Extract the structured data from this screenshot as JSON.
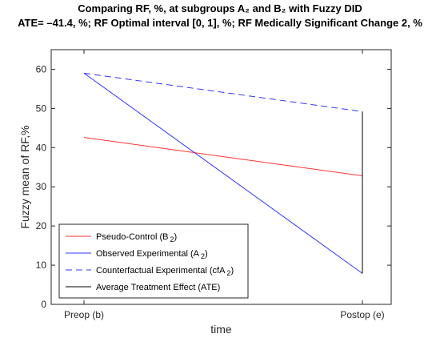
{
  "chart_data": {
    "type": "line",
    "title_line1": "Comparing RF, %, at subgroups A₂ and B₂ with Fuzzy DID",
    "title_line2": "ATE= –41.4, %; RF Optimal interval [0, 1], %; RF Medically Significant Change 2, %",
    "xlabel": "time",
    "ylabel": "Fuzzy mean of RF,%",
    "categories": [
      "Preop (b)",
      "Postop (e)"
    ],
    "ylim": [
      0,
      65
    ],
    "yticks": [
      0,
      10,
      20,
      30,
      40,
      50,
      60
    ],
    "grid": false,
    "legend_position": "bottom-left",
    "series": [
      {
        "name": "Pseudo-Control (B 2)",
        "legend_main": "Pseudo-Control (B",
        "legend_sub": "2",
        "legend_tail": ")",
        "values": [
          42.6,
          32.8
        ],
        "color": "#ff3333",
        "dash": "solid"
      },
      {
        "name": "Observed Experimental (A 2)",
        "legend_main": "Observed Experimental (A",
        "legend_sub": "2",
        "legend_tail": ")",
        "values": [
          59.0,
          7.9
        ],
        "color": "#3333ff",
        "dash": "solid"
      },
      {
        "name": "Counterfactual Experimental (cfA 2)",
        "legend_main": "Counterfactual Experimental (cfA",
        "legend_sub": "2",
        "legend_tail": ")",
        "values": [
          59.0,
          49.2
        ],
        "color": "#3333ff",
        "dash": "dashed"
      },
      {
        "name": "Average Treatment Effect (ATE)",
        "legend_main": "Average Treatment Effect (ATE)",
        "legend_sub": "",
        "legend_tail": "",
        "values": [
          7.9,
          49.2
        ],
        "color": "#000000",
        "dash": "solid",
        "at": "Postop (e)"
      }
    ]
  }
}
